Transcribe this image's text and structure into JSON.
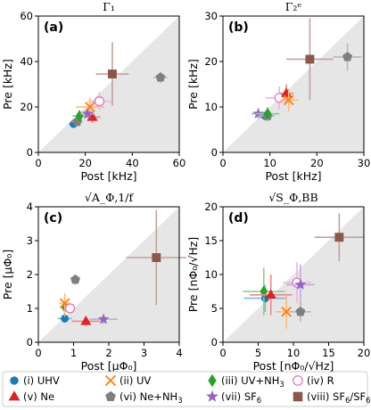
{
  "chart_data": [
    {
      "type": "scatter",
      "panel": "(a)",
      "title": "Γ₁",
      "xlabel": "Post [kHz]",
      "ylabel": "Pre [kHz]",
      "xlim": [
        0,
        60
      ],
      "ylim": [
        0,
        60
      ],
      "xticks": [
        0,
        20,
        40,
        60
      ],
      "yticks": [
        0,
        20,
        40,
        60
      ],
      "points": [
        {
          "series": "(i) UHV",
          "x": 15,
          "y": 12.5,
          "xerr": 2,
          "yerr": 1.5
        },
        {
          "series": "(vi) Ne+NH3",
          "x": 16.5,
          "y": 13.5,
          "xerr": 2.5,
          "yerr": 1.5
        },
        {
          "series": "(iii) UV+NH3",
          "x": 17.5,
          "y": 16,
          "xerr": 3,
          "yerr": 2.5
        },
        {
          "series": "(v) Ne",
          "x": 23,
          "y": 15.5,
          "xerr": 3.5,
          "yerr": 2.5
        },
        {
          "series": "(ii) UV",
          "x": 22,
          "y": 20,
          "xerr": 6,
          "yerr": 4
        },
        {
          "series": "(iv) R",
          "x": 26,
          "y": 22.5,
          "xerr": 5,
          "yerr": 4
        },
        {
          "series": "(vii) SF6",
          "x": 21,
          "y": 17,
          "xerr": 3,
          "yerr": 2
        },
        {
          "series": "(viii) SF6/SF6",
          "x": 31.5,
          "y": 34.5,
          "xerr": 7,
          "yerr": 14
        },
        {
          "series": "(vi) Ne+NH3",
          "x": 52,
          "y": 33,
          "xerr": 3,
          "yerr": 2.5
        }
      ],
      "diagonal": true
    },
    {
      "type": "scatter",
      "panel": "(b)",
      "title": "Γ₂ᵉ",
      "xlabel": "Post [kHz]",
      "ylabel": "Pre [kHz]",
      "xlim": [
        0,
        30
      ],
      "ylim": [
        0,
        30
      ],
      "xticks": [
        0,
        10,
        20,
        30
      ],
      "yticks": [
        0,
        10,
        20,
        30
      ],
      "points": [
        {
          "series": "(vii) SF6",
          "x": 7.5,
          "y": 8.5,
          "xerr": 1.5,
          "yerr": 1.2
        },
        {
          "series": "(i) UHV",
          "x": 9,
          "y": 8,
          "xerr": 1.5,
          "yerr": 1
        },
        {
          "series": "(vi) Ne+NH3",
          "x": 9.5,
          "y": 8,
          "xerr": 1.5,
          "yerr": 1.2
        },
        {
          "series": "(iii) UV+NH3",
          "x": 9.5,
          "y": 8.5,
          "xerr": 2.5,
          "yerr": 1.5
        },
        {
          "series": "(iv) R",
          "x": 12,
          "y": 12,
          "xerr": 3,
          "yerr": 2.5
        },
        {
          "series": "(v) Ne",
          "x": 13.5,
          "y": 13,
          "xerr": 1.5,
          "yerr": 2
        },
        {
          "series": "(ii) UV",
          "x": 14,
          "y": 11.5,
          "xerr": 2,
          "yerr": 2.5
        },
        {
          "series": "(viii) SF6/SF6",
          "x": 18.5,
          "y": 20.5,
          "xerr": 5,
          "yerr": 9
        },
        {
          "series": "(vi) Ne+NH3",
          "x": 26.5,
          "y": 21,
          "xerr": 3,
          "yerr": 3
        }
      ],
      "diagonal": true
    },
    {
      "type": "scatter",
      "panel": "(c)",
      "title": "√A_Φ,1/f",
      "xlabel": "Post [μΦ₀]",
      "ylabel": "Pre [μΦ₀]",
      "xlim": [
        0,
        4
      ],
      "ylim": [
        0,
        4
      ],
      "xticks": [
        0,
        1,
        2,
        3,
        4
      ],
      "yticks": [
        0,
        1,
        2,
        3,
        4
      ],
      "points": [
        {
          "series": "(i) UHV",
          "x": 0.75,
          "y": 0.7,
          "xerr": 0.2,
          "yerr": 0.12
        },
        {
          "series": "(iii) UV+NH3",
          "x": 0.75,
          "y": 1.05,
          "xerr": 0.1,
          "yerr": 0.3
        },
        {
          "series": "(ii) UV",
          "x": 0.75,
          "y": 1.15,
          "xerr": 0.15,
          "yerr": 0.3
        },
        {
          "series": "(iv) R",
          "x": 0.9,
          "y": 1.0,
          "xerr": 0.15,
          "yerr": 0.15
        },
        {
          "series": "(vi) Ne+NH3",
          "x": 1.05,
          "y": 1.85,
          "xerr": 0.12,
          "yerr": 0.15
        },
        {
          "series": "(v) Ne",
          "x": 1.35,
          "y": 0.62,
          "xerr": 0.4,
          "yerr": 0.15
        },
        {
          "series": "(vii) SF6",
          "x": 1.85,
          "y": 0.68,
          "xerr": 0.4,
          "yerr": 0.15
        },
        {
          "series": "(viii) SF6/SF6",
          "x": 3.35,
          "y": 2.5,
          "xerr": 0.85,
          "yerr": 1.4
        }
      ],
      "diagonal": true
    },
    {
      "type": "scatter",
      "panel": "(d)",
      "title": "√S_Φ,BB",
      "xlabel": "Post [nΦ₀/√Hz]",
      "ylabel": "Pre [nΦ₀/√Hz]",
      "xlim": [
        0,
        20
      ],
      "ylim": [
        0,
        20
      ],
      "xticks": [
        0,
        5,
        10,
        15,
        20
      ],
      "yticks": [
        0,
        5,
        10,
        15,
        20
      ],
      "points": [
        {
          "series": "(i) UHV",
          "x": 6,
          "y": 6.5,
          "xerr": 3,
          "yerr": 2
        },
        {
          "series": "(iii) UV+NH3",
          "x": 5.8,
          "y": 7.5,
          "xerr": 3,
          "yerr": 3.5
        },
        {
          "series": "(v) Ne",
          "x": 6.8,
          "y": 7,
          "xerr": 3,
          "yerr": 3
        },
        {
          "series": "(ii) UV",
          "x": 9,
          "y": 4.5,
          "xerr": 1.5,
          "yerr": 2.5
        },
        {
          "series": "(iv) R",
          "x": 10.5,
          "y": 8.8,
          "xerr": 2,
          "yerr": 3
        },
        {
          "series": "(vii) SF6",
          "x": 11,
          "y": 8.5,
          "xerr": 2,
          "yerr": 3
        },
        {
          "series": "(vi) Ne+NH3",
          "x": 11,
          "y": 4.5,
          "xerr": 1.5,
          "yerr": 1.5
        },
        {
          "series": "(viii) SF6/SF6",
          "x": 16.5,
          "y": 15.5,
          "xerr": 3.5,
          "yerr": 3.5
        }
      ],
      "diagonal": true
    }
  ],
  "legend": [
    {
      "label": "(i) UHV",
      "marker": "circle",
      "color": "#1f77b4"
    },
    {
      "label": "(ii) UV",
      "marker": "x",
      "color": "#ff7f0e"
    },
    {
      "label": "(iii) UV+NH",
      "sub": "3",
      "marker": "diamond",
      "color": "#2ca02c"
    },
    {
      "label": "(iv) R",
      "marker": "open-circle",
      "color": "#e377c2"
    },
    {
      "label": "(v) Ne",
      "marker": "triangle",
      "color": "#d62728"
    },
    {
      "label": "(vi) Ne+NH",
      "sub": "3",
      "marker": "pentagon",
      "color": "#7f7f7f"
    },
    {
      "label": "(vii) SF",
      "sub": "6",
      "marker": "star",
      "color": "#9467bd"
    },
    {
      "label": "(viii) SF",
      "sub": "6",
      "tail": "/SF",
      "sub2": "6",
      "marker": "square",
      "color": "#8c564b"
    }
  ],
  "series_style": {
    "(i) UHV": {
      "marker": "circle",
      "color": "#1f77b4"
    },
    "(ii) UV": {
      "marker": "x",
      "color": "#ff7f0e"
    },
    "(iii) UV+NH3": {
      "marker": "diamond",
      "color": "#2ca02c"
    },
    "(iv) R": {
      "marker": "open-circle",
      "color": "#e377c2"
    },
    "(v) Ne": {
      "marker": "triangle",
      "color": "#d62728"
    },
    "(vi) Ne+NH3": {
      "marker": "pentagon",
      "color": "#7f7f7f"
    },
    "(vii) SF6": {
      "marker": "star",
      "color": "#9467bd"
    },
    "(viii) SF6/SF6": {
      "marker": "square",
      "color": "#8c564b"
    }
  }
}
